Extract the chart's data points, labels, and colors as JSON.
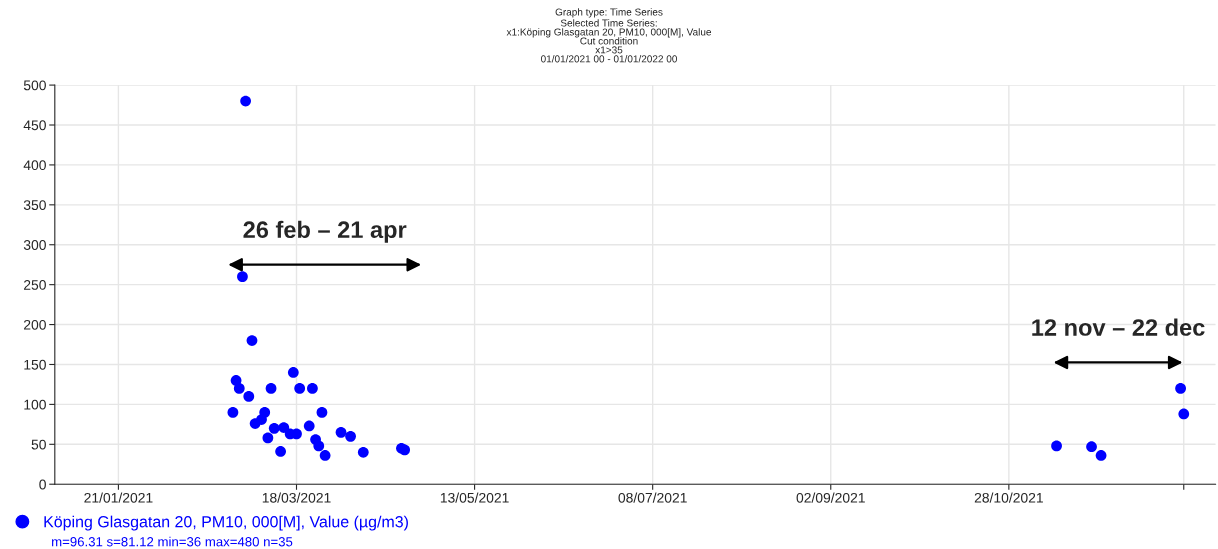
{
  "chart_data": {
    "type": "scatter",
    "title": "Graph type: Time Series",
    "subtitle": "Selected Time Series:\nx1:Köping Glasgatan 20, PM10, 000[M], Value\nCut condition\nx1>35\n01/01/2021 00 - 01/01/2022 00",
    "x": [
      "2021-02-26",
      "2021-02-27",
      "2021-02-28",
      "2021-03-01",
      "2021-03-02",
      "2021-03-03",
      "2021-03-04",
      "2021-03-05",
      "2021-03-07",
      "2021-03-08",
      "2021-03-09",
      "2021-03-10",
      "2021-03-11",
      "2021-03-13",
      "2021-03-14",
      "2021-03-16",
      "2021-03-17",
      "2021-03-18",
      "2021-03-19",
      "2021-03-22",
      "2021-03-23",
      "2021-03-24",
      "2021-03-25",
      "2021-03-26",
      "2021-03-27",
      "2021-04-01",
      "2021-04-04",
      "2021-04-08",
      "2021-04-20",
      "2021-04-21",
      "2021-11-12",
      "2021-11-23",
      "2021-11-26",
      "2021-12-21",
      "2021-12-22"
    ],
    "series": [
      {
        "name": "Köping Glasgatan 20, PM10, 000[M], Value (µg/m3)",
        "color": "#0000ff",
        "values": [
          90,
          130,
          120,
          260,
          480,
          110,
          180,
          76,
          81,
          90,
          58,
          120,
          70,
          41,
          71,
          63,
          140,
          63,
          120,
          73,
          120,
          56,
          48,
          90,
          36,
          65,
          60,
          40,
          45,
          43,
          48,
          47,
          36,
          120,
          88
        ]
      }
    ],
    "xlim": [
      "2021-01-01",
      "2022-01-01"
    ],
    "xticks": [
      {
        "value": "2021-01-21",
        "label": "21/01/2021"
      },
      {
        "value": "2021-03-18",
        "label": "18/03/2021"
      },
      {
        "value": "2021-05-13",
        "label": "13/05/2021"
      },
      {
        "value": "2021-07-08",
        "label": "08/07/2021"
      },
      {
        "value": "2021-09-02",
        "label": "02/09/2021"
      },
      {
        "value": "2021-10-28",
        "label": "28/10/2021"
      },
      {
        "value": "2021-12-22",
        "label": null
      }
    ],
    "ylim": [
      0,
      500
    ],
    "yticks": [
      0,
      50,
      100,
      150,
      200,
      250,
      300,
      350,
      400,
      450,
      500
    ],
    "grid": true,
    "marker": "circle",
    "legend": "bottom",
    "annotations": [
      "26 feb – 21 apr",
      "12 nov – 22 dec",
      "m=96.31 s=81.12 min=36 max=480 n=35"
    ]
  }
}
